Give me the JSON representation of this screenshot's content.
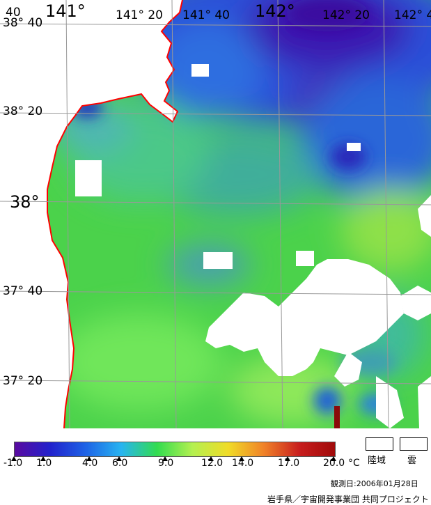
{
  "map": {
    "lat_labels": [
      {
        "text": "38° 40",
        "size": "small"
      },
      {
        "text": "38° 20",
        "size": "small"
      },
      {
        "text": "38°",
        "size": "big"
      },
      {
        "text": "37° 40",
        "size": "small"
      },
      {
        "text": "37° 20",
        "size": "small"
      }
    ],
    "lon_labels": [
      {
        "text": "40",
        "size": "small"
      },
      {
        "text": "141°",
        "size": "big"
      },
      {
        "text": "141° 20",
        "size": "small"
      },
      {
        "text": "141° 40",
        "size": "small"
      },
      {
        "text": "142°",
        "size": "big"
      },
      {
        "text": "142° 20",
        "size": "small"
      },
      {
        "text": "142° 4",
        "size": "small"
      }
    ],
    "colors": {
      "land": "#ffffff",
      "cloud": "#ffffff",
      "coastline": "#ff0000",
      "grid": "#999999"
    }
  },
  "legend": {
    "ticks": [
      "-1.0",
      "1.0",
      "4.0",
      "6.0",
      "9.0",
      "12.0",
      "14.0",
      "17.0",
      "20.0"
    ],
    "unit": "°C",
    "color_stops": [
      "#5a0aa0",
      "#2222cc",
      "#1e63e6",
      "#28b4f0",
      "#32dc50",
      "#b4f050",
      "#f0dc28",
      "#f08228",
      "#c81e1e",
      "#a00a0a"
    ],
    "land_label": "陸域",
    "cloud_label": "雲"
  },
  "footer": {
    "obs_date": "観測日:2006年01月28日",
    "organization": "岩手県／宇宙開発事業団 共同プロジェクト"
  }
}
